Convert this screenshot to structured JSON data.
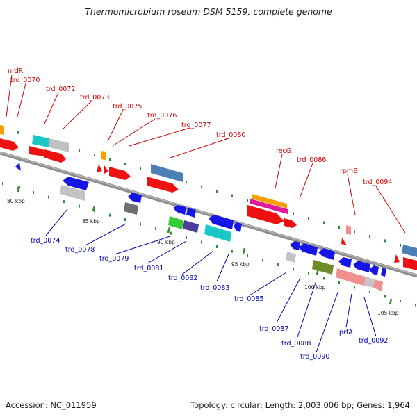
{
  "title": "Thermomicrobium roseum DSM 5159, complete genome",
  "footer": {
    "accession": "Accession: NC_011959",
    "summary": "Topology: circular; Length: 2,003,006 bp; Genes: 1,964"
  },
  "scale_ticks": [
    "80 kbp",
    "85 kbp",
    "90 kbp",
    "95 kbp",
    "100 kbp",
    "105 kbp"
  ],
  "colors": {
    "backbone": "#8c8c8c",
    "tick": "#2e8b2e",
    "top_label": "#cc0000",
    "bottom_label": "#0000aa"
  },
  "top_labels": [
    "nrdR",
    "trd_0070",
    "trd_0072",
    "trd_0073",
    "trd_0075",
    "trd_0076",
    "trd_0077",
    "trd_0080",
    "recG",
    "trd_0086",
    "rpmB",
    "trd_0094"
  ],
  "bottom_labels": [
    "trd_0074",
    "trd_0078",
    "trd_0079",
    "trd_0081",
    "trd_0082",
    "trd_0083",
    "trd_0085",
    "trd_0087",
    "trd_0088",
    "trd_0090",
    "prfA",
    "trd_0092"
  ]
}
